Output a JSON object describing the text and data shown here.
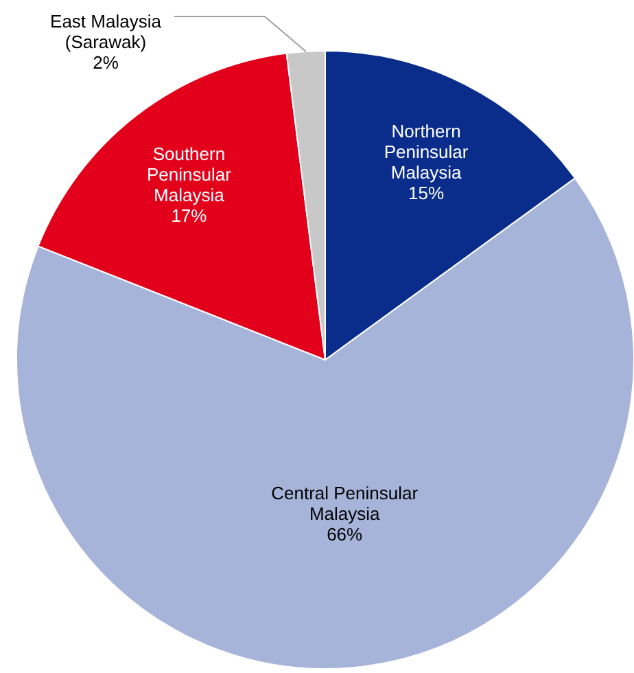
{
  "chart_data": {
    "type": "pie",
    "categories": [
      "Northern Peninsular Malaysia",
      "Central Peninsular Malaysia",
      "Southern Peninsular Malaysia",
      "East Malaysia (Sarawak)"
    ],
    "values": [
      15,
      66,
      17,
      2
    ],
    "colors": [
      "#0a2d8c",
      "#a7b4da",
      "#e2001a",
      "#c8c8c8"
    ],
    "value_labels": [
      "15%",
      "66%",
      "17%",
      "2%"
    ]
  }
}
